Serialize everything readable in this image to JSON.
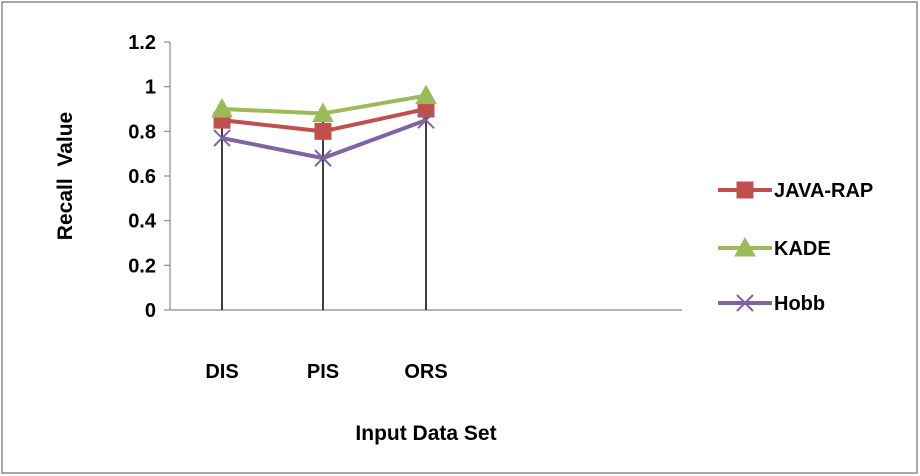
{
  "chart_data": {
    "type": "line",
    "categories": [
      "DIS",
      "PIS",
      "ORS"
    ],
    "series": [
      {
        "name": "JAVA-RAP",
        "values": [
          0.85,
          0.8,
          0.9
        ],
        "color": "#c0504d",
        "marker": "square"
      },
      {
        "name": "KADE",
        "values": [
          0.9,
          0.88,
          0.96
        ],
        "color": "#9bbb59",
        "marker": "triangle"
      },
      {
        "name": "Hobb",
        "values": [
          0.77,
          0.68,
          0.85
        ],
        "color": "#8064a2",
        "marker": "x"
      }
    ],
    "y_ticks": [
      "0",
      "0.2",
      "0.4",
      "0.6",
      "0.8",
      "1",
      "1.2"
    ],
    "ylim": [
      0,
      1.2
    ],
    "xlabel": "Input Data Set",
    "ylabel": "Recall  Value",
    "grid": false,
    "drop_lines": true,
    "legend_position": "right"
  }
}
